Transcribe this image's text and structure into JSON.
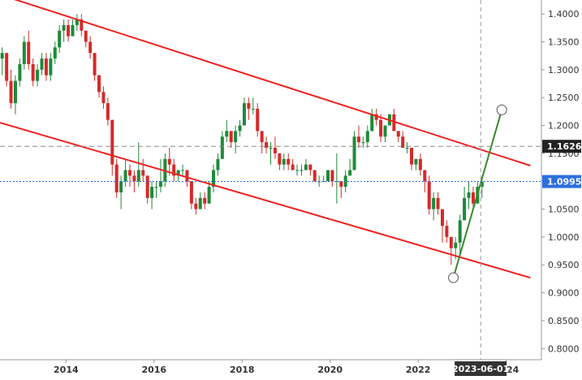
{
  "chart_data": {
    "type": "candlestick",
    "title": "",
    "xlabel": "",
    "ylabel": "",
    "x_tick_labels": [
      "2014",
      "2016",
      "2018",
      "2020",
      "2022"
    ],
    "x_tick_partial": "24",
    "y_tick_labels": [
      "1.4000",
      "1.3500",
      "1.3000",
      "1.2500",
      "1.2000",
      "1.1500",
      "1.1000",
      "1.0500",
      "1.0000",
      "0.9500",
      "0.9000",
      "0.8500",
      "0.8000"
    ],
    "ylim": [
      0.78,
      1.425
    ],
    "xlim": [
      2012.5,
      2024.8
    ],
    "grid": false,
    "colors": {
      "up_candle": "#1e8a3a",
      "down_candle": "#d42a2a",
      "channel_line": "#ee2222",
      "trend_line": "#3a8a2a",
      "current_price_badge": "#2e6fe0",
      "level_badge": "#222222",
      "date_badge": "#333333"
    },
    "current_price": {
      "label": "1.0995",
      "value": 1.0995
    },
    "horizontal_level": {
      "label": "1.1626",
      "value": 1.1626
    },
    "crosshair_date": {
      "label": "2023-06-01",
      "x": 2023.42
    },
    "channel_upper": {
      "x": [
        2012.6,
        2024.55
      ],
      "y": [
        1.432,
        1.128
      ]
    },
    "channel_lower": {
      "x": [
        2012.5,
        2024.55
      ],
      "y": [
        1.205,
        0.927
      ]
    },
    "trend_line": {
      "x": [
        2022.8,
        2023.9
      ],
      "y": [
        0.927,
        1.228
      ]
    },
    "candles": [
      [
        2012.55,
        1.32,
        1.34,
        1.29,
        1.33
      ],
      [
        2012.65,
        1.33,
        1.33,
        1.27,
        1.28
      ],
      [
        2012.75,
        1.28,
        1.3,
        1.23,
        1.24
      ],
      [
        2012.85,
        1.24,
        1.29,
        1.22,
        1.28
      ],
      [
        2012.95,
        1.28,
        1.32,
        1.27,
        1.31
      ],
      [
        2013.05,
        1.31,
        1.36,
        1.3,
        1.35
      ],
      [
        2013.15,
        1.35,
        1.37,
        1.3,
        1.31
      ],
      [
        2013.25,
        1.31,
        1.32,
        1.27,
        1.28
      ],
      [
        2013.35,
        1.28,
        1.31,
        1.27,
        1.3
      ],
      [
        2013.45,
        1.3,
        1.33,
        1.29,
        1.32
      ],
      [
        2013.55,
        1.32,
        1.33,
        1.28,
        1.29
      ],
      [
        2013.65,
        1.29,
        1.33,
        1.28,
        1.32
      ],
      [
        2013.75,
        1.32,
        1.35,
        1.31,
        1.34
      ],
      [
        2013.85,
        1.34,
        1.38,
        1.33,
        1.37
      ],
      [
        2013.95,
        1.37,
        1.39,
        1.35,
        1.38
      ],
      [
        2014.05,
        1.38,
        1.39,
        1.35,
        1.36
      ],
      [
        2014.15,
        1.36,
        1.39,
        1.36,
        1.38
      ],
      [
        2014.25,
        1.38,
        1.4,
        1.37,
        1.39
      ],
      [
        2014.35,
        1.39,
        1.4,
        1.36,
        1.37
      ],
      [
        2014.45,
        1.37,
        1.37,
        1.34,
        1.35
      ],
      [
        2014.55,
        1.35,
        1.36,
        1.32,
        1.33
      ],
      [
        2014.65,
        1.33,
        1.33,
        1.28,
        1.29
      ],
      [
        2014.75,
        1.29,
        1.29,
        1.25,
        1.26
      ],
      [
        2014.85,
        1.26,
        1.27,
        1.23,
        1.24
      ],
      [
        2014.95,
        1.24,
        1.25,
        1.2,
        1.21
      ],
      [
        2015.05,
        1.21,
        1.21,
        1.11,
        1.13
      ],
      [
        2015.15,
        1.13,
        1.14,
        1.07,
        1.08
      ],
      [
        2015.25,
        1.08,
        1.11,
        1.05,
        1.1
      ],
      [
        2015.35,
        1.1,
        1.14,
        1.09,
        1.12
      ],
      [
        2015.45,
        1.12,
        1.13,
        1.09,
        1.11
      ],
      [
        2015.55,
        1.11,
        1.12,
        1.08,
        1.1
      ],
      [
        2015.65,
        1.1,
        1.17,
        1.09,
        1.12
      ],
      [
        2015.75,
        1.12,
        1.14,
        1.1,
        1.11
      ],
      [
        2015.85,
        1.11,
        1.11,
        1.06,
        1.07
      ],
      [
        2015.95,
        1.07,
        1.1,
        1.05,
        1.09
      ],
      [
        2016.05,
        1.09,
        1.1,
        1.07,
        1.09
      ],
      [
        2016.15,
        1.09,
        1.14,
        1.08,
        1.1
      ],
      [
        2016.25,
        1.1,
        1.15,
        1.09,
        1.14
      ],
      [
        2016.35,
        1.14,
        1.16,
        1.11,
        1.13
      ],
      [
        2016.45,
        1.13,
        1.14,
        1.1,
        1.11
      ],
      [
        2016.55,
        1.11,
        1.12,
        1.1,
        1.12
      ],
      [
        2016.65,
        1.12,
        1.13,
        1.11,
        1.12
      ],
      [
        2016.75,
        1.12,
        1.12,
        1.09,
        1.1
      ],
      [
        2016.85,
        1.1,
        1.1,
        1.05,
        1.06
      ],
      [
        2016.95,
        1.06,
        1.07,
        1.04,
        1.05
      ],
      [
        2017.05,
        1.05,
        1.08,
        1.05,
        1.07
      ],
      [
        2017.15,
        1.07,
        1.08,
        1.05,
        1.06
      ],
      [
        2017.25,
        1.06,
        1.1,
        1.06,
        1.09
      ],
      [
        2017.35,
        1.09,
        1.13,
        1.08,
        1.12
      ],
      [
        2017.45,
        1.12,
        1.15,
        1.11,
        1.14
      ],
      [
        2017.55,
        1.14,
        1.19,
        1.14,
        1.18
      ],
      [
        2017.65,
        1.18,
        1.21,
        1.17,
        1.19
      ],
      [
        2017.75,
        1.19,
        1.19,
        1.16,
        1.17
      ],
      [
        2017.85,
        1.17,
        1.2,
        1.15,
        1.19
      ],
      [
        2017.95,
        1.19,
        1.21,
        1.18,
        1.2
      ],
      [
        2018.05,
        1.2,
        1.25,
        1.2,
        1.24
      ],
      [
        2018.15,
        1.24,
        1.25,
        1.21,
        1.23
      ],
      [
        2018.25,
        1.23,
        1.25,
        1.22,
        1.23
      ],
      [
        2018.35,
        1.23,
        1.24,
        1.18,
        1.19
      ],
      [
        2018.45,
        1.19,
        1.19,
        1.15,
        1.17
      ],
      [
        2018.55,
        1.17,
        1.18,
        1.15,
        1.16
      ],
      [
        2018.65,
        1.16,
        1.17,
        1.13,
        1.16
      ],
      [
        2018.75,
        1.16,
        1.18,
        1.14,
        1.15
      ],
      [
        2018.85,
        1.15,
        1.15,
        1.12,
        1.13
      ],
      [
        2018.95,
        1.13,
        1.15,
        1.12,
        1.14
      ],
      [
        2019.05,
        1.14,
        1.15,
        1.12,
        1.13
      ],
      [
        2019.15,
        1.13,
        1.14,
        1.12,
        1.12
      ],
      [
        2019.25,
        1.12,
        1.13,
        1.11,
        1.12
      ],
      [
        2019.35,
        1.12,
        1.13,
        1.11,
        1.12
      ],
      [
        2019.45,
        1.12,
        1.14,
        1.12,
        1.13
      ],
      [
        2019.55,
        1.13,
        1.13,
        1.11,
        1.12
      ],
      [
        2019.65,
        1.12,
        1.12,
        1.1,
        1.1
      ],
      [
        2019.75,
        1.1,
        1.11,
        1.09,
        1.1
      ],
      [
        2019.85,
        1.1,
        1.11,
        1.1,
        1.1
      ],
      [
        2019.95,
        1.1,
        1.12,
        1.1,
        1.12
      ],
      [
        2020.05,
        1.12,
        1.12,
        1.09,
        1.1
      ],
      [
        2020.15,
        1.1,
        1.15,
        1.06,
        1.1
      ],
      [
        2020.25,
        1.1,
        1.1,
        1.07,
        1.09
      ],
      [
        2020.35,
        1.09,
        1.12,
        1.08,
        1.11
      ],
      [
        2020.45,
        1.11,
        1.14,
        1.11,
        1.12
      ],
      [
        2020.55,
        1.12,
        1.19,
        1.12,
        1.18
      ],
      [
        2020.65,
        1.18,
        1.2,
        1.16,
        1.17
      ],
      [
        2020.75,
        1.17,
        1.18,
        1.16,
        1.17
      ],
      [
        2020.85,
        1.17,
        1.2,
        1.16,
        1.19
      ],
      [
        2020.95,
        1.19,
        1.23,
        1.19,
        1.22
      ],
      [
        2021.05,
        1.22,
        1.23,
        1.2,
        1.21
      ],
      [
        2021.15,
        1.21,
        1.22,
        1.17,
        1.18
      ],
      [
        2021.25,
        1.18,
        1.2,
        1.17,
        1.2
      ],
      [
        2021.35,
        1.2,
        1.22,
        1.2,
        1.22
      ],
      [
        2021.45,
        1.22,
        1.23,
        1.19,
        1.19
      ],
      [
        2021.55,
        1.19,
        1.19,
        1.17,
        1.18
      ],
      [
        2021.65,
        1.18,
        1.19,
        1.16,
        1.16
      ],
      [
        2021.75,
        1.16,
        1.17,
        1.15,
        1.16
      ],
      [
        2021.85,
        1.16,
        1.16,
        1.12,
        1.13
      ],
      [
        2021.95,
        1.13,
        1.14,
        1.12,
        1.14
      ],
      [
        2022.05,
        1.14,
        1.15,
        1.11,
        1.12
      ],
      [
        2022.15,
        1.12,
        1.12,
        1.08,
        1.1
      ],
      [
        2022.25,
        1.1,
        1.11,
        1.04,
        1.05
      ],
      [
        2022.35,
        1.05,
        1.08,
        1.03,
        1.07
      ],
      [
        2022.45,
        1.07,
        1.08,
        1.04,
        1.05
      ],
      [
        2022.55,
        1.05,
        1.05,
        0.99,
        1.02
      ],
      [
        2022.65,
        1.02,
        1.03,
        0.99,
        1.0
      ],
      [
        2022.75,
        1.0,
        1.0,
        0.95,
        0.98
      ],
      [
        2022.85,
        0.98,
        1.0,
        0.96,
        0.99
      ],
      [
        2022.95,
        0.99,
        1.04,
        0.97,
        1.03
      ],
      [
        2023.05,
        1.03,
        1.09,
        1.03,
        1.07
      ],
      [
        2023.15,
        1.07,
        1.1,
        1.05,
        1.08
      ],
      [
        2023.25,
        1.08,
        1.09,
        1.05,
        1.06
      ],
      [
        2023.35,
        1.06,
        1.1,
        1.06,
        1.09
      ],
      [
        2023.45,
        1.09,
        1.1,
        1.07,
        1.0995
      ]
    ]
  }
}
